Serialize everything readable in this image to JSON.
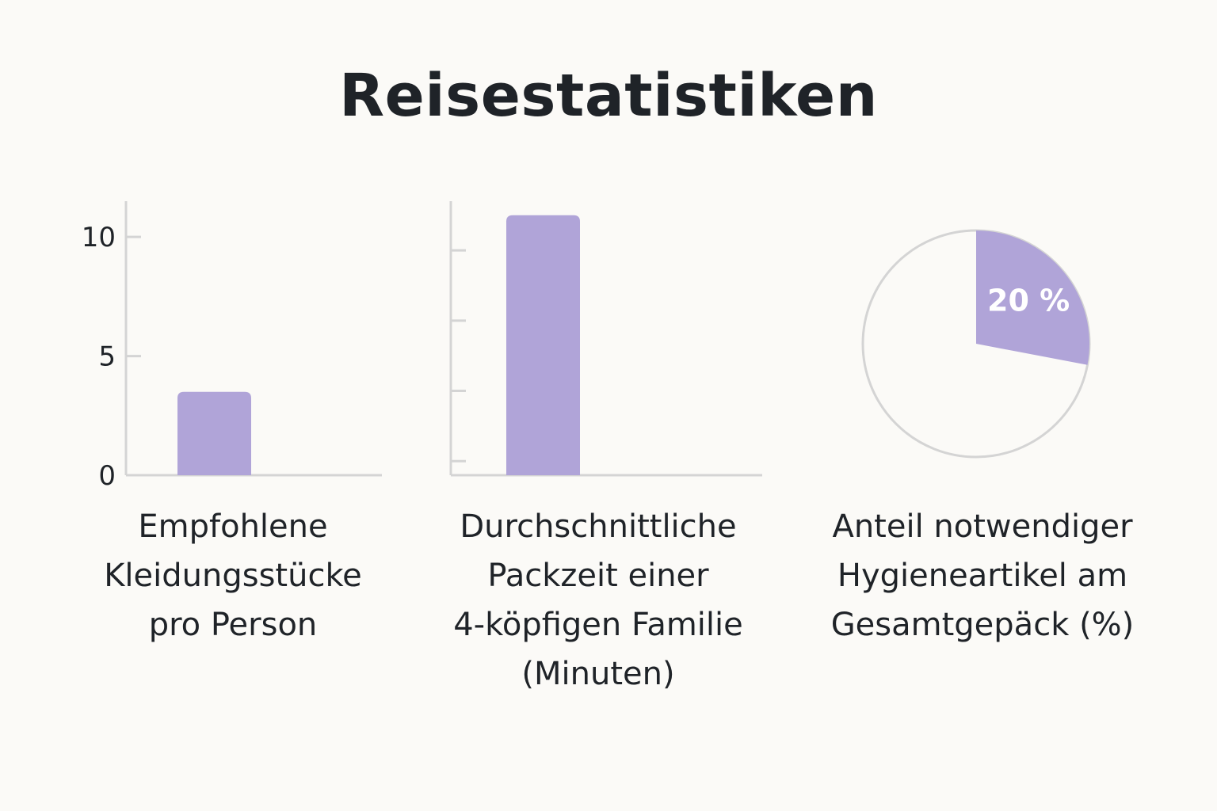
{
  "title": "Reisestatistiken",
  "colors": {
    "accent": "#b0a4d8",
    "axis": "#d4d4d4",
    "background": "#fbfaf7",
    "text": "#1f2328"
  },
  "chart_data": [
    {
      "type": "bar",
      "values": [
        3.5
      ],
      "ylim": [
        0,
        11.5
      ],
      "yticks": [
        0,
        5,
        10
      ],
      "ytick_labels": [
        "0",
        "5",
        "10"
      ],
      "caption_lines": [
        "Empfohlene",
        "Kleidungsstücke",
        "pro Person"
      ]
    },
    {
      "type": "bar",
      "values": [
        18.5
      ],
      "ylim": [
        0,
        19.5
      ],
      "yticks": [
        1,
        6,
        11,
        16
      ],
      "ytick_labels": [],
      "caption_lines": [
        "Durchschnittliche",
        "Packzeit einer",
        "4-köpfigen Familie",
        "(Minuten)"
      ]
    },
    {
      "type": "pie",
      "values": [
        20,
        80
      ],
      "highlight_index": 0,
      "data_label": "20 %",
      "caption_lines": [
        "Anteil notwendiger",
        "Hygieneartikel am",
        "Gesamtgepäck (%)"
      ]
    }
  ]
}
